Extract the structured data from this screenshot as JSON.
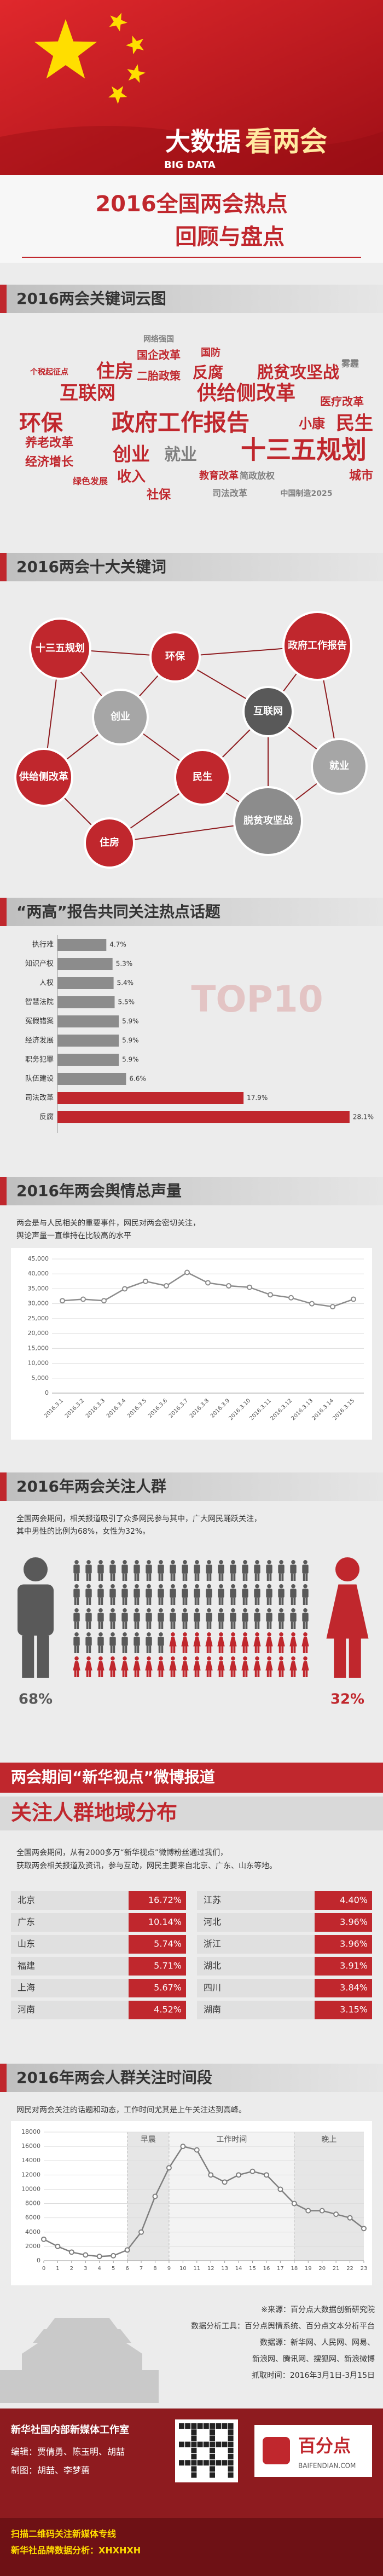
{
  "header": {
    "brand": "大数据",
    "brand_highlight": "看两会",
    "brand_en": "BIG DATA",
    "title": [
      "2016全国两会热点",
      "回顾与盘点"
    ]
  },
  "word_cloud": {
    "title": "2016两会关键词云图",
    "color": "#c0272d",
    "secondary_color": "#7f7f7f",
    "words": [
      "十三五规划",
      "政府工作报告",
      "环保",
      "民生",
      "小康",
      "创业",
      "就业",
      "互联网",
      "供给侧改革",
      "住房",
      "反腐",
      "脱贫攻坚战",
      "国企改革",
      "二胎政策",
      "国防",
      "医疗改革",
      "养老改革",
      "经济增长",
      "收入",
      "城市",
      "社保",
      "教育改革",
      "司法改革",
      "绿色发展",
      "简政放权",
      "中国制造2025",
      "个税起征点",
      "网络强国",
      "雾霾"
    ]
  },
  "top_keywords": {
    "title": "2016两会十大关键词",
    "nodes": [
      "十三五规划",
      "环保",
      "政府工作报告",
      "创业",
      "互联网",
      "供给侧改革",
      "民生",
      "就业",
      "住房",
      "脱贫攻坚战"
    ],
    "colors": [
      "#c0272d",
      "#c0272d",
      "#c0272d",
      "#a6a6a6",
      "#595959",
      "#c0272d",
      "#c0272d",
      "#a6a6a6",
      "#c0272d",
      "#8c8c8c"
    ]
  },
  "chart_data": [
    {
      "type": "hbar",
      "title": "“两高”报告共同关注热点话题",
      "annotation": "TOP10",
      "categories": [
        "执行难",
        "知识产权",
        "人权",
        "智慧法院",
        "冤假错案",
        "经济发展",
        "职务犯罪",
        "队伍建设",
        "司法改革",
        "反腐"
      ],
      "values": [
        4.7,
        5.3,
        5.4,
        5.5,
        5.9,
        5.9,
        5.9,
        6.6,
        17.9,
        28.1
      ],
      "value_labels": [
        "4.7%",
        "5.3%",
        "5.4%",
        "5.5%",
        "5.9%",
        "5.9%",
        "5.9%",
        "6.6%",
        "17.9%",
        "28.1%"
      ],
      "colors": [
        "#8c8c8c",
        "#8c8c8c",
        "#8c8c8c",
        "#8c8c8c",
        "#8c8c8c",
        "#8c8c8c",
        "#8c8c8c",
        "#8c8c8c",
        "#c0272d",
        "#c0272d"
      ]
    },
    {
      "type": "line",
      "title": "2016年两会舆情总声量",
      "text": [
        "两会是与人民相关的重要事件，网民对两会密切关注，",
        "舆论声量一直维持在比较高的水平"
      ],
      "categories": [
        "2016.3.1",
        "2016.3.2",
        "2016.3.3",
        "2016.3.4",
        "2016.3.5",
        "2016.3.6",
        "2016.3.7",
        "2016.3.8",
        "2016.3.9",
        "2016.3.10",
        "2016.3.11",
        "2016.3.12",
        "2016.3.13",
        "2016.3.14",
        "2016.3.15"
      ],
      "values": [
        31000,
        31500,
        31000,
        35000,
        37500,
        36000,
        40500,
        37000,
        36000,
        35500,
        33000,
        32000,
        30000,
        29000,
        31500
      ],
      "color": "#8c8c8c",
      "grid": true,
      "ylim": [
        0,
        45000
      ],
      "yticks": [
        0,
        {
          "value": 5000,
          "label": "5,000"
        },
        {
          "value": 10000,
          "label": "10,000"
        },
        {
          "value": 15000,
          "label": "15,000"
        },
        {
          "value": 20000,
          "label": "20,000"
        },
        {
          "value": 25000,
          "label": "25,000"
        },
        {
          "value": 30000,
          "label": "30,000"
        },
        {
          "value": 35000,
          "label": "35,000"
        },
        {
          "value": 40000,
          "label": "40,000"
        },
        {
          "value": 45000,
          "label": "45,000"
        }
      ]
    },
    {
      "type": "pictogram",
      "title": "2016年两会关注人群",
      "text": [
        "全国两会期间，相关报道吸引了众多网民参与其中，广大网民踊跃关注，",
        "其中男性的比例为68%，女性为32%。"
      ],
      "values": [
        68,
        32
      ],
      "value_labels": [
        "68%",
        "32%"
      ],
      "colors": [
        "#595959",
        "#c0272d"
      ]
    },
    {
      "type": "line",
      "title": "2016年两会人群关注时间段",
      "text": [
        "网民对两会关注的话题和动态，工作时间尤其是上午关注达到高峰。"
      ],
      "x": [
        0,
        1,
        2,
        3,
        4,
        5,
        6,
        7,
        8,
        9,
        10,
        11,
        12,
        13,
        14,
        15,
        16,
        17,
        18,
        19,
        20,
        21,
        22,
        23
      ],
      "values": [
        3000,
        2000,
        1200,
        800,
        600,
        700,
        1500,
        4000,
        9000,
        13000,
        16000,
        15500,
        12000,
        11000,
        12000,
        12500,
        12000,
        10000,
        8000,
        7000,
        7000,
        6500,
        6000,
        4500
      ],
      "color": "#7f7f7f",
      "grid": true,
      "xlim": [
        0,
        23
      ],
      "xticks": [
        0,
        1,
        2,
        3,
        4,
        5,
        6,
        7,
        8,
        9,
        10,
        11,
        12,
        13,
        14,
        15,
        16,
        17,
        18,
        19,
        20,
        21,
        22,
        23
      ],
      "ylim": [
        0,
        18000
      ],
      "yticks": [
        0,
        2000,
        4000,
        6000,
        8000,
        10000,
        12000,
        14000,
        16000,
        18000
      ],
      "periods": [
        {
          "label": "早晨",
          "from": 6,
          "to": 9
        },
        {
          "label": "工作时间",
          "from": 9,
          "to": 18
        },
        {
          "label": "晚上",
          "from": 18,
          "to": 23
        }
      ]
    }
  ],
  "region": {
    "title": [
      "两会期间“新华视点”微博报道",
      "关注人群地域分布"
    ],
    "text": [
      "全国两会期间，从有2000多万“新华视点”微博粉丝通过我们，",
      "获取两会相关报道及资讯，参与互动，网民主要来自北京、广东、山东等地。"
    ],
    "rows": [
      [
        "北京",
        "16.72%",
        "江苏",
        "4.40%"
      ],
      [
        "广东",
        "10.14%",
        "河北",
        "3.96%"
      ],
      [
        "山东",
        "5.74%",
        "浙江",
        "3.96%"
      ],
      [
        "福建",
        "5.71%",
        "湖北",
        "3.91%"
      ],
      [
        "上海",
        "5.67%",
        "四川",
        "3.84%"
      ],
      [
        "河南",
        "4.52%",
        "湖南",
        "3.15%"
      ]
    ]
  },
  "source": {
    "lines": [
      "※来源：百分点大数据创新研究院",
      "数据分析工具：百分点舆情系统、百分点文本分析平台",
      "数据源：新华网、人民网、网易、",
      "新浪网、腾讯网、搜狐网、新浪微博",
      "抓取时间：2016年3月1日-3月15日"
    ]
  },
  "footer": {
    "org": "新华社国内部新媒体工作室",
    "credits": [
      "编辑：贾倩勇、陈玉明、胡喆",
      "制图：胡喆、李梦蕙"
    ],
    "qr_text": [
      "扫描二维码关注新媒体专线",
      "新华社品牌数据分析：XHXHXH"
    ],
    "logo": "百分点",
    "logo_url": "BAIFENDIAN.COM"
  }
}
